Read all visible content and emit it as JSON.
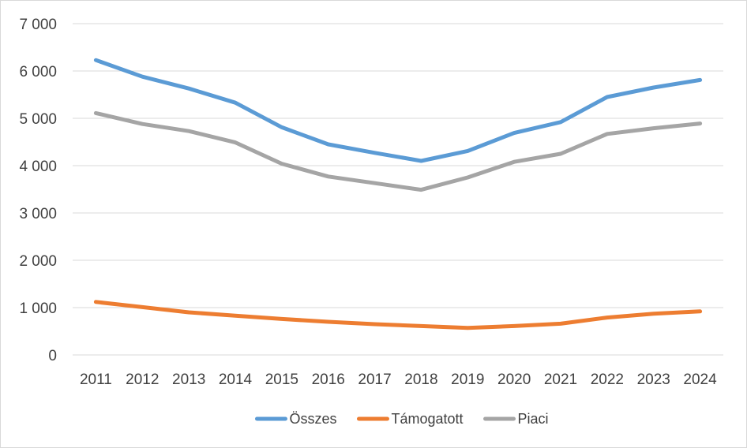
{
  "chart_data": {
    "type": "line",
    "title": "",
    "xlabel": "",
    "ylabel": "",
    "x": [
      "2011",
      "2012",
      "2013",
      "2014",
      "2015",
      "2016",
      "2017",
      "2018",
      "2019",
      "2020",
      "2021",
      "2022",
      "2023",
      "2024"
    ],
    "ylim": [
      0,
      7000
    ],
    "yticks": [
      0,
      1000,
      2000,
      3000,
      4000,
      5000,
      6000,
      7000
    ],
    "ytick_labels": [
      "0",
      "1 000",
      "2 000",
      "3 000",
      "4 000",
      "5 000",
      "6 000",
      "7 000"
    ],
    "grid": true,
    "legend_position": "bottom",
    "series": [
      {
        "name": "Összes",
        "color": "#5b9bd5",
        "values": [
          6230,
          5880,
          5630,
          5330,
          4810,
          4450,
          4270,
          4100,
          4310,
          4690,
          4920,
          5450,
          5650,
          5810
        ]
      },
      {
        "name": "Támogatott",
        "color": "#ed7d31",
        "values": [
          1120,
          1010,
          900,
          830,
          760,
          700,
          650,
          610,
          570,
          610,
          660,
          790,
          870,
          920
        ]
      },
      {
        "name": "Piaci",
        "color": "#a5a5a5",
        "values": [
          5110,
          4880,
          4730,
          4490,
          4040,
          3770,
          3630,
          3490,
          3750,
          4080,
          4250,
          4670,
          4790,
          4890
        ]
      }
    ]
  }
}
